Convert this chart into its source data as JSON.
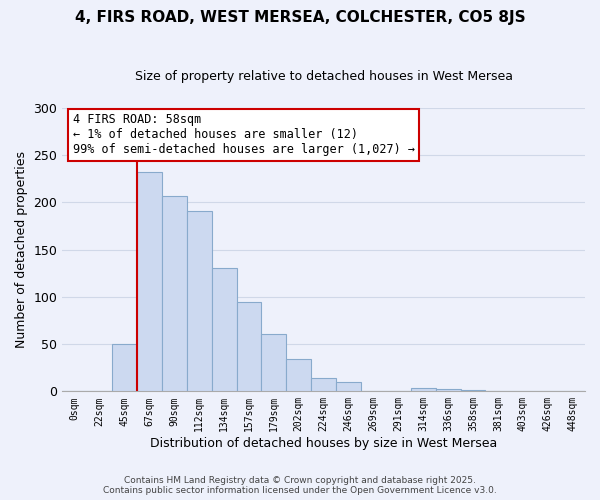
{
  "title": "4, FIRS ROAD, WEST MERSEA, COLCHESTER, CO5 8JS",
  "subtitle": "Size of property relative to detached houses in West Mersea",
  "xlabel": "Distribution of detached houses by size in West Mersea",
  "ylabel": "Number of detached properties",
  "bar_color": "#ccd9f0",
  "bar_edge_color": "#88aacc",
  "bin_labels": [
    "0sqm",
    "22sqm",
    "45sqm",
    "67sqm",
    "90sqm",
    "112sqm",
    "134sqm",
    "157sqm",
    "179sqm",
    "202sqm",
    "224sqm",
    "246sqm",
    "269sqm",
    "291sqm",
    "314sqm",
    "336sqm",
    "358sqm",
    "381sqm",
    "403sqm",
    "426sqm",
    "448sqm"
  ],
  "bar_heights": [
    0,
    0,
    50,
    232,
    207,
    191,
    131,
    95,
    61,
    34,
    14,
    10,
    0,
    0,
    4,
    2,
    1,
    0,
    0,
    0,
    0
  ],
  "ylim": [
    0,
    300
  ],
  "yticks": [
    0,
    50,
    100,
    150,
    200,
    250,
    300
  ],
  "vline_color": "#cc0000",
  "annotation_title": "4 FIRS ROAD: 58sqm",
  "annotation_line1": "← 1% of detached houses are smaller (12)",
  "annotation_line2": "99% of semi-detached houses are larger (1,027) →",
  "annotation_box_color": "#ffffff",
  "annotation_box_edge": "#cc0000",
  "footer1": "Contains HM Land Registry data © Crown copyright and database right 2025.",
  "footer2": "Contains public sector information licensed under the Open Government Licence v3.0.",
  "bg_color": "#eef1fb",
  "plot_bg_color": "#eef1fb",
  "grid_color": "#d0d8e8",
  "spine_color": "#aaaaaa"
}
